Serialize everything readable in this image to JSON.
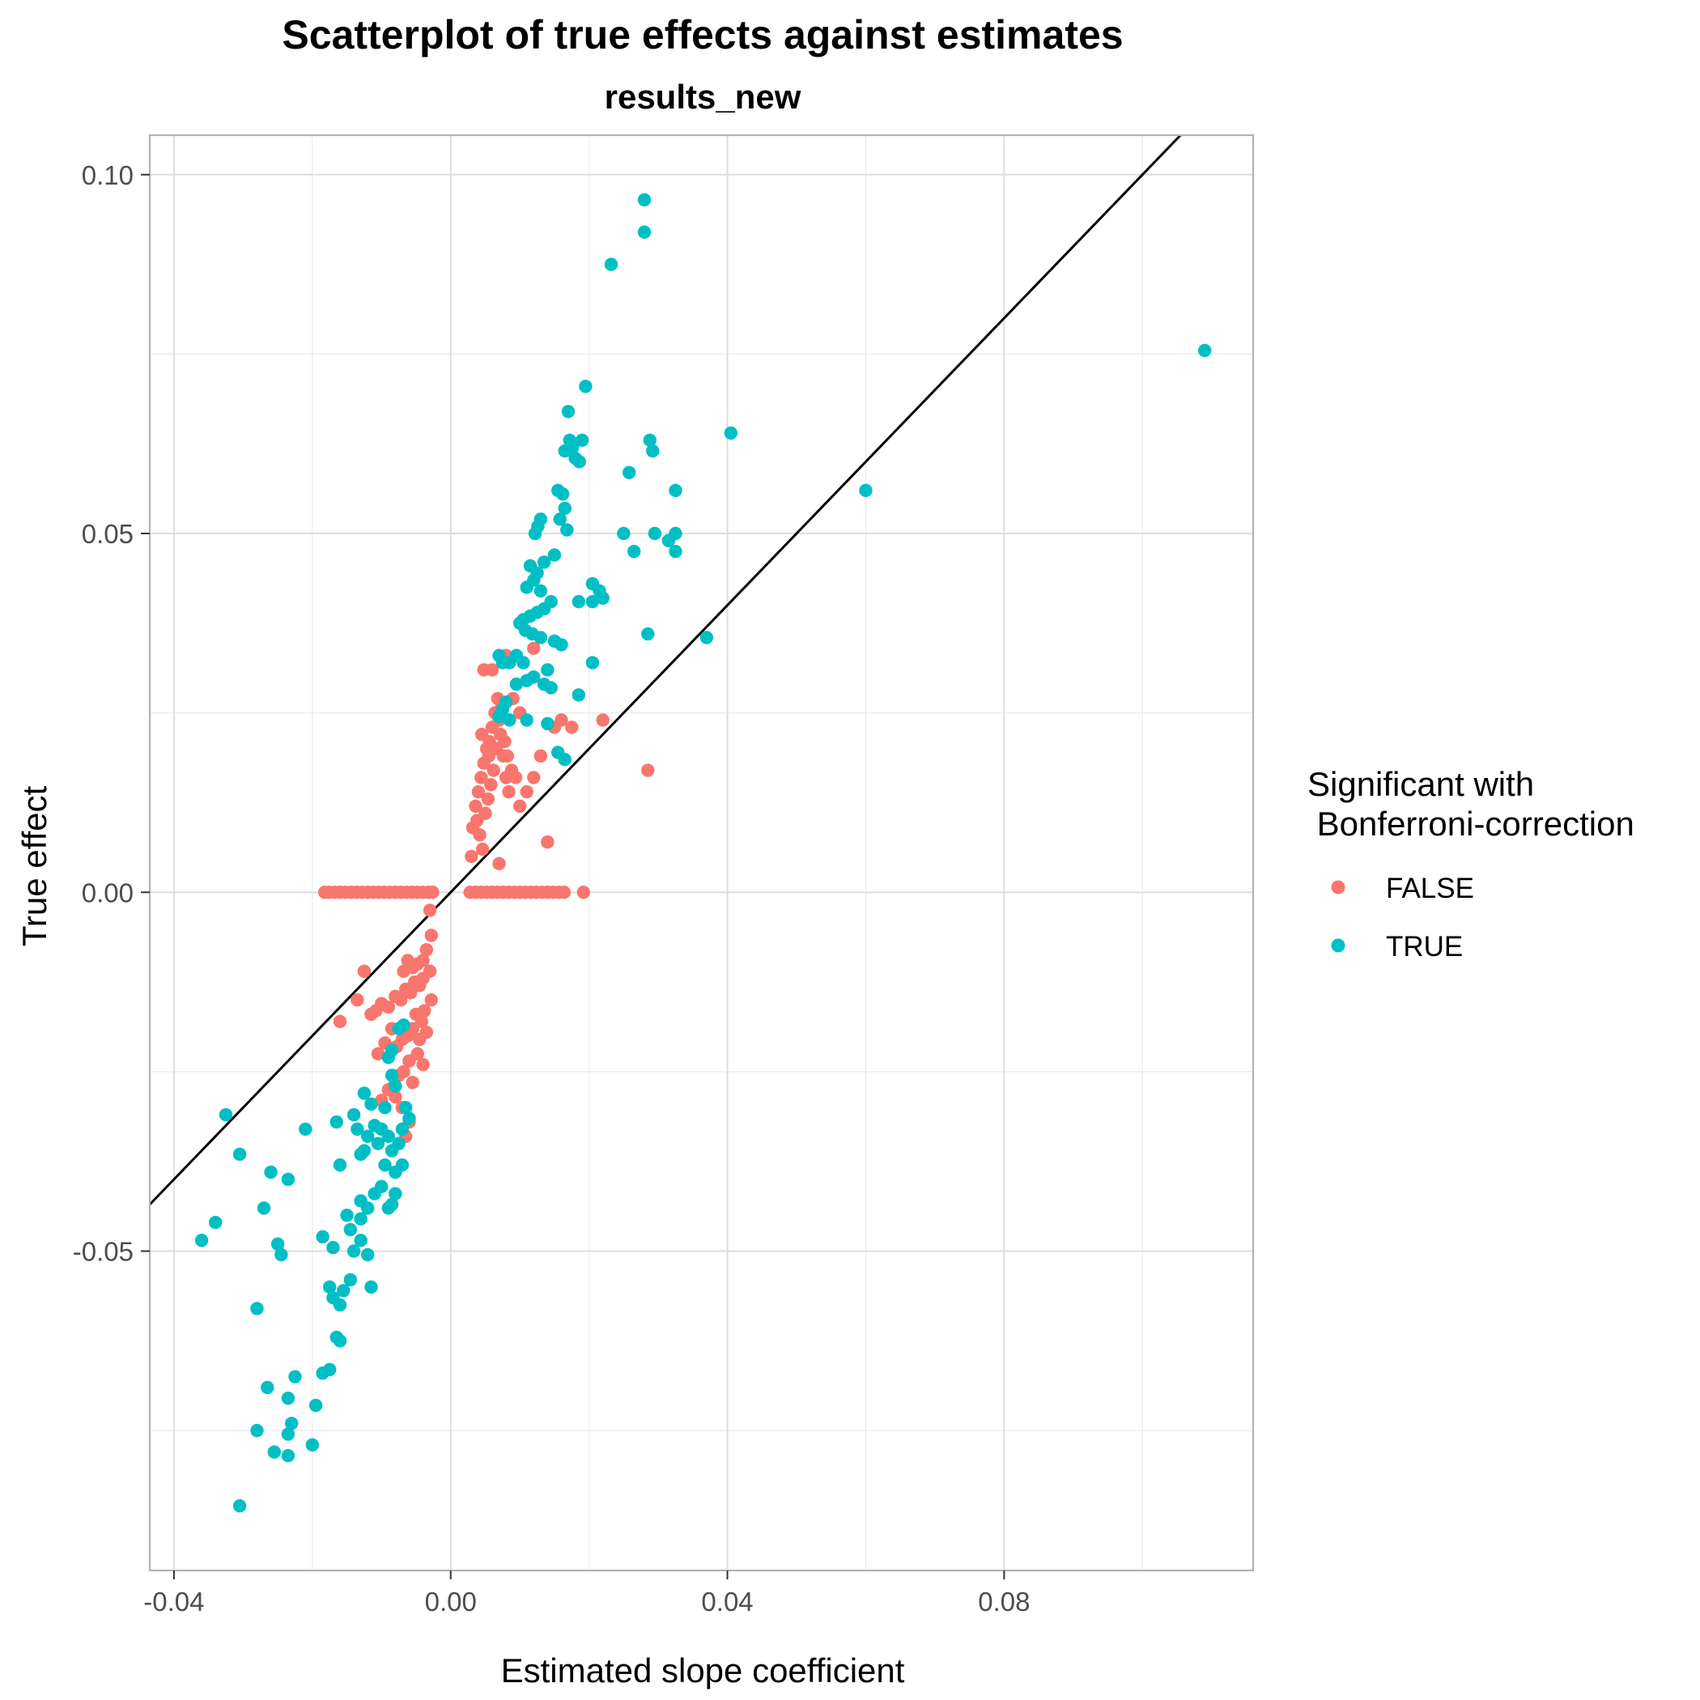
{
  "chart_data": {
    "type": "scatter",
    "title": "Scatterplot of true effects against estimates",
    "subtitle": "results_new",
    "xlabel": "Estimated slope coefficient",
    "ylabel": "True effect",
    "xlim": [
      -0.0435,
      0.116
    ],
    "ylim": [
      -0.0945,
      0.1055
    ],
    "x_ticks": [
      -0.04,
      0.0,
      0.04,
      0.08
    ],
    "x_tick_labels": [
      "-0.04",
      "0.00",
      "0.04",
      "0.08"
    ],
    "y_ticks": [
      -0.05,
      0.0,
      0.05,
      0.1
    ],
    "y_tick_labels": [
      "-0.05",
      "0.00",
      "0.05",
      "0.10"
    ],
    "grid": true,
    "legend": {
      "title": "Significant with\n Bonferroni-correction",
      "position": "right",
      "entries": [
        "FALSE",
        "TRUE"
      ]
    },
    "reference_line": {
      "slope": 1,
      "intercept": 0,
      "color": "#000000"
    },
    "series": [
      {
        "name": "FALSE",
        "color": "#F8766D",
        "points": [
          [
            -0.0182,
            0.0
          ],
          [
            -0.0176,
            0.0
          ],
          [
            -0.0168,
            0.0
          ],
          [
            -0.016,
            0.0
          ],
          [
            -0.0152,
            0.0
          ],
          [
            -0.0144,
            0.0
          ],
          [
            -0.0136,
            0.0
          ],
          [
            -0.0128,
            0.0
          ],
          [
            -0.012,
            0.0
          ],
          [
            -0.0112,
            0.0
          ],
          [
            -0.0104,
            0.0
          ],
          [
            -0.0096,
            0.0
          ],
          [
            -0.0088,
            0.0
          ],
          [
            -0.008,
            0.0
          ],
          [
            -0.0072,
            0.0
          ],
          [
            -0.0064,
            0.0
          ],
          [
            -0.0056,
            0.0
          ],
          [
            -0.0048,
            0.0
          ],
          [
            -0.004,
            0.0
          ],
          [
            -0.0032,
            0.0
          ],
          [
            -0.0026,
            0.0
          ],
          [
            0.0028,
            0.0
          ],
          [
            0.0036,
            0.0
          ],
          [
            0.0044,
            0.0
          ],
          [
            0.0052,
            0.0
          ],
          [
            0.006,
            0.0
          ],
          [
            0.0068,
            0.0
          ],
          [
            0.0076,
            0.0
          ],
          [
            0.0084,
            0.0
          ],
          [
            0.0092,
            0.0
          ],
          [
            0.01,
            0.0
          ],
          [
            0.0108,
            0.0
          ],
          [
            0.0116,
            0.0
          ],
          [
            0.0124,
            0.0
          ],
          [
            0.0132,
            0.0
          ],
          [
            0.014,
            0.0
          ],
          [
            0.0148,
            0.0
          ],
          [
            0.0156,
            0.0
          ],
          [
            0.0164,
            0.0
          ],
          [
            0.0192,
            0.0
          ],
          [
            -0.003,
            -0.0025
          ],
          [
            -0.0028,
            -0.006
          ],
          [
            -0.0035,
            -0.008
          ],
          [
            -0.004,
            -0.0095
          ],
          [
            -0.0048,
            -0.01
          ],
          [
            -0.0055,
            -0.0105
          ],
          [
            -0.0062,
            -0.0095
          ],
          [
            -0.0068,
            -0.011
          ],
          [
            -0.004,
            -0.012
          ],
          [
            -0.0045,
            -0.013
          ],
          [
            -0.0052,
            -0.0125
          ],
          [
            -0.0058,
            -0.014
          ],
          [
            -0.0065,
            -0.0135
          ],
          [
            -0.0072,
            -0.015
          ],
          [
            -0.008,
            -0.0145
          ],
          [
            -0.009,
            -0.016
          ],
          [
            -0.01,
            -0.0155
          ],
          [
            -0.0108,
            -0.0165
          ],
          [
            -0.0115,
            -0.017
          ],
          [
            -0.005,
            -0.017
          ],
          [
            -0.0042,
            -0.018
          ],
          [
            -0.0055,
            -0.019
          ],
          [
            -0.0062,
            -0.02
          ],
          [
            -0.007,
            -0.0205
          ],
          [
            -0.0078,
            -0.0215
          ],
          [
            -0.0048,
            -0.0225
          ],
          [
            -0.004,
            -0.024
          ],
          [
            -0.006,
            -0.0235
          ],
          [
            -0.0068,
            -0.025
          ],
          [
            -0.0075,
            -0.0255
          ],
          [
            -0.0082,
            -0.027
          ],
          [
            -0.009,
            -0.0275
          ],
          [
            -0.0055,
            -0.0265
          ],
          [
            -0.0035,
            -0.0195
          ],
          [
            -0.003,
            -0.011
          ],
          [
            -0.0028,
            -0.015
          ],
          [
            -0.0085,
            -0.019
          ],
          [
            -0.0095,
            -0.021
          ],
          [
            -0.0105,
            -0.0225
          ],
          [
            -0.0125,
            -0.011
          ],
          [
            -0.0135,
            -0.015
          ],
          [
            -0.016,
            -0.018
          ],
          [
            -0.008,
            -0.0285
          ],
          [
            -0.01,
            -0.029
          ],
          [
            -0.0065,
            -0.034
          ],
          [
            -0.006,
            -0.032
          ],
          [
            -0.007,
            -0.03
          ],
          [
            -0.0045,
            -0.0205
          ],
          [
            -0.0038,
            -0.0165
          ],
          [
            0.003,
            0.005
          ],
          [
            0.0032,
            0.009
          ],
          [
            0.0036,
            0.012
          ],
          [
            0.004,
            0.014
          ],
          [
            0.0044,
            0.016
          ],
          [
            0.0048,
            0.018
          ],
          [
            0.0052,
            0.02
          ],
          [
            0.0056,
            0.021
          ],
          [
            0.006,
            0.023
          ],
          [
            0.0064,
            0.025
          ],
          [
            0.0068,
            0.027
          ],
          [
            0.0072,
            0.022
          ],
          [
            0.0076,
            0.019
          ],
          [
            0.008,
            0.016
          ],
          [
            0.0084,
            0.014
          ],
          [
            0.0038,
            0.01
          ],
          [
            0.0042,
            0.008
          ],
          [
            0.0046,
            0.006
          ],
          [
            0.005,
            0.011
          ],
          [
            0.0054,
            0.013
          ],
          [
            0.0058,
            0.015
          ],
          [
            0.0062,
            0.017
          ],
          [
            0.0066,
            0.02
          ],
          [
            0.007,
            0.024
          ],
          [
            0.0074,
            0.026
          ],
          [
            0.0078,
            0.021
          ],
          [
            0.0082,
            0.019
          ],
          [
            0.0088,
            0.017
          ],
          [
            0.0094,
            0.016
          ],
          [
            0.01,
            0.012
          ],
          [
            0.011,
            0.014
          ],
          [
            0.012,
            0.016
          ],
          [
            0.013,
            0.019
          ],
          [
            0.015,
            0.023
          ],
          [
            0.016,
            0.024
          ],
          [
            0.0175,
            0.023
          ],
          [
            0.022,
            0.024
          ],
          [
            0.0285,
            0.017
          ],
          [
            0.014,
            0.007
          ],
          [
            0.007,
            0.004
          ],
          [
            0.006,
            0.031
          ],
          [
            0.0048,
            0.031
          ],
          [
            0.009,
            0.027
          ],
          [
            0.01,
            0.025
          ],
          [
            0.012,
            0.034
          ],
          [
            0.008,
            0.033
          ],
          [
            0.0045,
            0.022
          ],
          [
            0.0055,
            0.019
          ]
        ]
      },
      {
        "name": "TRUE",
        "color": "#00BFC4",
        "points": [
          [
            0.028,
            0.0965
          ],
          [
            0.028,
            0.092
          ],
          [
            0.0232,
            0.0875
          ],
          [
            0.109,
            0.0755
          ],
          [
            0.0195,
            0.0705
          ],
          [
            0.017,
            0.067
          ],
          [
            0.0172,
            0.063
          ],
          [
            0.0176,
            0.062
          ],
          [
            0.019,
            0.063
          ],
          [
            0.0165,
            0.0615
          ],
          [
            0.018,
            0.0605
          ],
          [
            0.0186,
            0.06
          ],
          [
            0.0288,
            0.063
          ],
          [
            0.0292,
            0.0615
          ],
          [
            0.0405,
            0.064
          ],
          [
            0.0258,
            0.0585
          ],
          [
            0.06,
            0.056
          ],
          [
            0.0325,
            0.056
          ],
          [
            0.0155,
            0.056
          ],
          [
            0.0162,
            0.0555
          ],
          [
            0.0165,
            0.0535
          ],
          [
            0.0158,
            0.052
          ],
          [
            0.0168,
            0.0505
          ],
          [
            0.013,
            0.052
          ],
          [
            0.0126,
            0.051
          ],
          [
            0.0122,
            0.05
          ],
          [
            0.025,
            0.05
          ],
          [
            0.0295,
            0.05
          ],
          [
            0.0325,
            0.05
          ],
          [
            0.0315,
            0.049
          ],
          [
            0.0325,
            0.0475
          ],
          [
            0.0265,
            0.0475
          ],
          [
            0.015,
            0.047
          ],
          [
            0.0135,
            0.046
          ],
          [
            0.0115,
            0.0455
          ],
          [
            0.0125,
            0.0445
          ],
          [
            0.012,
            0.0435
          ],
          [
            0.011,
            0.0425
          ],
          [
            0.013,
            0.042
          ],
          [
            0.0205,
            0.043
          ],
          [
            0.0215,
            0.042
          ],
          [
            0.022,
            0.041
          ],
          [
            0.0205,
            0.0405
          ],
          [
            0.0185,
            0.0405
          ],
          [
            0.0145,
            0.0405
          ],
          [
            0.0135,
            0.0395
          ],
          [
            0.0125,
            0.039
          ],
          [
            0.0115,
            0.0385
          ],
          [
            0.0105,
            0.038
          ],
          [
            0.01,
            0.0375
          ],
          [
            0.0108,
            0.0365
          ],
          [
            0.0118,
            0.036
          ],
          [
            0.013,
            0.0355
          ],
          [
            0.015,
            0.035
          ],
          [
            0.016,
            0.0345
          ],
          [
            0.0285,
            0.036
          ],
          [
            0.037,
            0.0355
          ],
          [
            0.0095,
            0.033
          ],
          [
            0.0105,
            0.032
          ],
          [
            0.0085,
            0.032
          ],
          [
            0.0075,
            0.032
          ],
          [
            0.007,
            0.033
          ],
          [
            0.0205,
            0.032
          ],
          [
            0.014,
            0.031
          ],
          [
            0.012,
            0.03
          ],
          [
            0.011,
            0.0295
          ],
          [
            0.0095,
            0.029
          ],
          [
            0.0135,
            0.029
          ],
          [
            0.0145,
            0.0285
          ],
          [
            0.0185,
            0.0275
          ],
          [
            0.008,
            0.0265
          ],
          [
            0.0075,
            0.0255
          ],
          [
            0.007,
            0.0245
          ],
          [
            0.0085,
            0.024
          ],
          [
            0.011,
            0.024
          ],
          [
            0.014,
            0.0235
          ],
          [
            0.0155,
            0.0195
          ],
          [
            0.0165,
            0.0185
          ],
          [
            -0.0325,
            -0.031
          ],
          [
            -0.0305,
            -0.0365
          ],
          [
            -0.026,
            -0.039
          ],
          [
            -0.0235,
            -0.04
          ],
          [
            -0.027,
            -0.044
          ],
          [
            -0.025,
            -0.049
          ],
          [
            -0.0245,
            -0.0505
          ],
          [
            -0.034,
            -0.046
          ],
          [
            -0.036,
            -0.0485
          ],
          [
            -0.028,
            -0.058
          ],
          [
            -0.0265,
            -0.069
          ],
          [
            -0.0225,
            -0.0675
          ],
          [
            -0.0235,
            -0.0705
          ],
          [
            -0.0195,
            -0.0715
          ],
          [
            -0.0185,
            -0.067
          ],
          [
            -0.0175,
            -0.0665
          ],
          [
            -0.028,
            -0.075
          ],
          [
            -0.0255,
            -0.078
          ],
          [
            -0.0235,
            -0.0785
          ],
          [
            -0.0235,
            -0.0755
          ],
          [
            -0.023,
            -0.074
          ],
          [
            -0.02,
            -0.077
          ],
          [
            -0.0305,
            -0.0855
          ],
          [
            -0.021,
            -0.033
          ],
          [
            -0.0165,
            -0.032
          ],
          [
            -0.016,
            -0.038
          ],
          [
            -0.0185,
            -0.048
          ],
          [
            -0.017,
            -0.0495
          ],
          [
            -0.0175,
            -0.055
          ],
          [
            -0.017,
            -0.0565
          ],
          [
            -0.016,
            -0.0575
          ],
          [
            -0.0155,
            -0.0555
          ],
          [
            -0.0145,
            -0.054
          ],
          [
            -0.0165,
            -0.062
          ],
          [
            -0.016,
            -0.0625
          ],
          [
            -0.015,
            -0.045
          ],
          [
            -0.0145,
            -0.047
          ],
          [
            -0.014,
            -0.05
          ],
          [
            -0.013,
            -0.0485
          ],
          [
            -0.013,
            -0.0455
          ],
          [
            -0.012,
            -0.044
          ],
          [
            -0.013,
            -0.043
          ],
          [
            -0.011,
            -0.042
          ],
          [
            -0.012,
            -0.0505
          ],
          [
            -0.0115,
            -0.055
          ],
          [
            -0.009,
            -0.044
          ],
          [
            -0.0085,
            -0.0435
          ],
          [
            -0.008,
            -0.042
          ],
          [
            -0.01,
            -0.041
          ],
          [
            -0.0095,
            -0.038
          ],
          [
            -0.008,
            -0.039
          ],
          [
            -0.007,
            -0.038
          ],
          [
            -0.0085,
            -0.036
          ],
          [
            -0.009,
            -0.034
          ],
          [
            -0.01,
            -0.033
          ],
          [
            -0.011,
            -0.0325
          ],
          [
            -0.012,
            -0.034
          ],
          [
            -0.0125,
            -0.036
          ],
          [
            -0.013,
            -0.0365
          ],
          [
            -0.0105,
            -0.035
          ],
          [
            -0.0075,
            -0.035
          ],
          [
            -0.007,
            -0.033
          ],
          [
            -0.006,
            -0.0315
          ],
          [
            -0.0125,
            -0.028
          ],
          [
            -0.0115,
            -0.0295
          ],
          [
            -0.008,
            -0.027
          ],
          [
            -0.0085,
            -0.0255
          ],
          [
            -0.009,
            -0.023
          ],
          [
            -0.0085,
            -0.022
          ],
          [
            -0.0075,
            -0.019
          ],
          [
            -0.0068,
            -0.0185
          ],
          [
            -0.014,
            -0.031
          ],
          [
            -0.0135,
            -0.033
          ],
          [
            -0.0095,
            -0.03
          ],
          [
            -0.0065,
            -0.03
          ]
        ]
      }
    ]
  }
}
